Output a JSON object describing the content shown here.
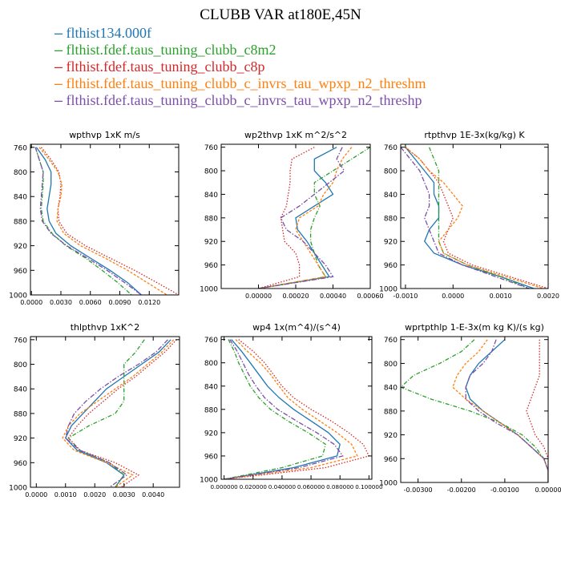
{
  "title": "CLUBB VAR at180E,45N",
  "series": [
    {
      "name": "flthist134.000f",
      "color": "#1f77b4",
      "dash": ""
    },
    {
      "name": "flthist.fdef.taus_tuning_clubb_c8m2",
      "color": "#2ca02c",
      "dash": "5,2,1,2"
    },
    {
      "name": "flthist.fdef.taus_tuning_clubb_c8p",
      "color": "#d62728",
      "dash": "1.5,2"
    },
    {
      "name": "flthist.fdef.taus_tuning_clubb_c_invrs_tau_wpxp_n2_threshm",
      "color": "#ff7f0e",
      "dash": "3,2"
    },
    {
      "name": "flthist.fdef.taus_tuning_clubb_c_invrs_tau_wpxp_n2_threshp",
      "color": "#7b4fa8",
      "dash": "6,2,1.5,2"
    }
  ],
  "chart_data": [
    {
      "type": "line",
      "title": "wpthvp  1xK m/s",
      "y": [
        760,
        780,
        800,
        820,
        840,
        860,
        880,
        900,
        920,
        940,
        960,
        980,
        1000
      ],
      "ylim": [
        1000,
        755
      ],
      "yticks": [
        760,
        800,
        840,
        880,
        920,
        960,
        1000
      ],
      "xlim": [
        -0.0001,
        0.015
      ],
      "xticks": [
        0.0,
        0.003,
        0.006,
        0.009,
        0.012
      ],
      "xticklabels": [
        "0.0000",
        "0.0030",
        "0.0060",
        "0.0090",
        "0.0120"
      ],
      "series": [
        {
          "values": [
            0.0005,
            0.0014,
            0.002,
            0.002,
            0.0018,
            0.0016,
            0.0018,
            0.0025,
            0.004,
            0.006,
            0.008,
            0.0098,
            0.0112
          ]
        },
        {
          "values": [
            0.0004,
            0.0008,
            0.0012,
            0.0012,
            0.0011,
            0.001,
            0.0012,
            0.0021,
            0.0035,
            0.0055,
            0.0072,
            0.0088,
            0.0102
          ]
        },
        {
          "values": [
            0.001,
            0.002,
            0.0028,
            0.003,
            0.0029,
            0.0027,
            0.0028,
            0.0036,
            0.0055,
            0.008,
            0.0105,
            0.0128,
            0.015
          ]
        },
        {
          "values": [
            0.0008,
            0.0018,
            0.0027,
            0.0031,
            0.003,
            0.0027,
            0.0026,
            0.0033,
            0.005,
            0.0075,
            0.0098,
            0.0118,
            0.0138
          ]
        },
        {
          "values": [
            0.0004,
            0.0008,
            0.0012,
            0.0011,
            0.001,
            0.0009,
            0.0011,
            0.002,
            0.0036,
            0.0057,
            0.0077,
            0.0095,
            0.0112
          ]
        }
      ]
    },
    {
      "type": "line",
      "title": "wp2thvp  1xK m^2/s^2",
      "y": [
        760,
        780,
        800,
        820,
        840,
        860,
        880,
        900,
        920,
        940,
        960,
        980,
        1000
      ],
      "ylim": [
        1000,
        755
      ],
      "yticks": [
        760,
        800,
        840,
        880,
        920,
        960,
        1000
      ],
      "xlim": [
        -0.0002,
        0.0006
      ],
      "xticks": [
        0.0,
        0.0002,
        0.0004,
        0.0006
      ],
      "xticklabels": [
        "0.00000",
        "0.00020",
        "0.00040",
        "0.00060"
      ],
      "series": [
        {
          "values": [
            0.00042,
            0.0003,
            0.0003,
            0.00036,
            0.0004,
            0.0003,
            0.0002,
            0.00021,
            0.00026,
            0.0003,
            0.00034,
            0.00038,
            0.0
          ]
        },
        {
          "values": [
            0.0006,
            0.0005,
            0.0004,
            0.0003,
            0.0003,
            0.00033,
            0.0003,
            0.00028,
            0.00028,
            0.0003,
            0.00032,
            0.00036,
            0.0
          ]
        },
        {
          "values": [
            0.0003,
            0.00018,
            0.00017,
            0.00017,
            0.00016,
            0.00015,
            0.00012,
            0.00013,
            0.00014,
            0.0002,
            0.00022,
            0.00022,
            0.0
          ]
        },
        {
          "values": [
            0.0005,
            0.00045,
            0.00042,
            0.0004,
            0.00035,
            0.00032,
            0.00022,
            0.0002,
            0.00024,
            0.00028,
            0.00032,
            0.00036,
            0.0
          ]
        },
        {
          "values": [
            0.00045,
            0.00042,
            0.00046,
            0.00038,
            0.0003,
            0.00022,
            0.00012,
            0.00015,
            0.00024,
            0.0003,
            0.00036,
            0.0004,
            0.0
          ]
        }
      ]
    },
    {
      "type": "line",
      "title": "rtpthvp  1E-3x(kg/kg) K",
      "y": [
        760,
        780,
        800,
        820,
        840,
        860,
        880,
        900,
        920,
        940,
        960,
        980,
        1000
      ],
      "ylim": [
        1000,
        755
      ],
      "yticks": [
        760,
        800,
        840,
        880,
        920,
        960,
        1000
      ],
      "xlim": [
        -0.0011,
        0.002
      ],
      "xticks": [
        -0.001,
        0.0,
        0.001,
        0.002
      ],
      "xticklabels": [
        "-0.0010",
        "0.0000",
        "0.0010",
        "0.0020"
      ],
      "series": [
        {
          "values": [
            -0.001,
            -0.0008,
            -0.0006,
            -0.0004,
            -0.0004,
            -0.0003,
            -0.0003,
            -0.0005,
            -0.0006,
            -0.0004,
            0.0002,
            0.001,
            0.0017
          ]
        },
        {
          "values": [
            -0.0005,
            -0.0004,
            -0.0003,
            -0.0003,
            -0.0003,
            -0.0003,
            -0.0003,
            -0.0003,
            -0.0003,
            -0.0002,
            0.0003,
            0.001,
            0.0016
          ]
        },
        {
          "values": [
            -0.001,
            -0.0007,
            -0.0005,
            -0.0003,
            -0.0002,
            -0.0001,
            0.0,
            -0.0001,
            -0.0002,
            -0.0001,
            0.0004,
            0.0012,
            0.002
          ]
        },
        {
          "values": [
            -0.001,
            -0.0007,
            -0.0005,
            -0.0002,
            0.0,
            0.0002,
            0.0001,
            -0.0001,
            -0.0003,
            -0.0002,
            0.0003,
            0.0011,
            0.0019
          ]
        },
        {
          "values": [
            -0.0011,
            -0.0009,
            -0.0007,
            -0.0006,
            -0.0005,
            -0.0005,
            -0.0006,
            -0.0005,
            -0.0004,
            -0.0003,
            0.0002,
            0.0009,
            0.0016
          ]
        }
      ]
    },
    {
      "type": "line",
      "title": "thlpthvp  1xK^2",
      "y": [
        760,
        780,
        800,
        820,
        840,
        860,
        880,
        900,
        920,
        940,
        960,
        980,
        1000
      ],
      "ylim": [
        1000,
        755
      ],
      "yticks": [
        760,
        800,
        840,
        880,
        920,
        960,
        1000
      ],
      "xlim": [
        -0.0002,
        0.0049
      ],
      "xticks": [
        0.0,
        0.001,
        0.002,
        0.003,
        0.004
      ],
      "xticklabels": [
        "0.0000",
        "0.0010",
        "0.0020",
        "0.0030",
        "0.0040"
      ],
      "series": [
        {
          "values": [
            0.0046,
            0.0042,
            0.0036,
            0.003,
            0.0024,
            0.002,
            0.0016,
            0.0012,
            0.001,
            0.0014,
            0.0024,
            0.003,
            0.0027
          ]
        },
        {
          "values": [
            0.0037,
            0.0034,
            0.003,
            0.003,
            0.003,
            0.003,
            0.0027,
            0.0018,
            0.0011,
            0.0015,
            0.0025,
            0.003,
            0.0027
          ]
        },
        {
          "values": [
            0.0048,
            0.0044,
            0.0039,
            0.0034,
            0.0028,
            0.0023,
            0.0018,
            0.0014,
            0.0011,
            0.0015,
            0.0027,
            0.0035,
            0.0029
          ]
        },
        {
          "values": [
            0.0047,
            0.0043,
            0.0038,
            0.0033,
            0.0027,
            0.0021,
            0.0015,
            0.0011,
            0.0009,
            0.0013,
            0.0024,
            0.0033,
            0.0027
          ]
        },
        {
          "values": [
            0.0045,
            0.0041,
            0.0035,
            0.0028,
            0.0022,
            0.0017,
            0.0013,
            0.0011,
            0.001,
            0.0015,
            0.0025,
            0.0031,
            0.0025
          ]
        }
      ]
    },
    {
      "type": "line",
      "title": "wp4  1x(m^4)/(s^4)",
      "y": [
        760,
        780,
        800,
        820,
        840,
        860,
        880,
        900,
        920,
        940,
        960,
        980,
        1000
      ],
      "ylim": [
        1000,
        755
      ],
      "yticks": [
        760,
        800,
        840,
        880,
        920,
        960,
        1000
      ],
      "xlim": [
        -2.0,
        102.0
      ],
      "xticks": [
        0,
        20,
        40,
        60,
        80,
        100
      ],
      "xticklabels": [
        "0.000000",
        "0.020000",
        "0.040000",
        "0.060000",
        "0.080000",
        "0.100000"
      ],
      "series": [
        {
          "values": [
            5,
            12,
            18,
            24,
            30,
            38,
            48,
            60,
            72,
            80,
            78,
            48,
            0
          ]
        },
        {
          "values": [
            3,
            7,
            10,
            14,
            18,
            24,
            32,
            44,
            58,
            70,
            68,
            40,
            0
          ]
        },
        {
          "values": [
            10,
            20,
            28,
            34,
            40,
            48,
            60,
            74,
            86,
            96,
            100,
            70,
            0
          ]
        },
        {
          "values": [
            8,
            16,
            25,
            32,
            38,
            44,
            54,
            66,
            78,
            88,
            92,
            60,
            0
          ]
        },
        {
          "values": [
            4,
            9,
            13,
            17,
            22,
            28,
            37,
            50,
            64,
            76,
            82,
            52,
            0
          ]
        }
      ]
    },
    {
      "type": "line",
      "title": "wprtpthlp  1-E-3x(m kg K)/(s kg)",
      "y": [
        760,
        780,
        800,
        820,
        840,
        860,
        880,
        900,
        920,
        940,
        960,
        980,
        1000
      ],
      "ylim": [
        1000,
        755
      ],
      "yticks": [
        760,
        800,
        840,
        880,
        920,
        960,
        1000
      ],
      "xlim": [
        -0.0034,
        0.0
      ],
      "xticks": [
        -0.003,
        -0.002,
        -0.001,
        0.0
      ],
      "xticklabels": [
        "-0.00300",
        "-0.00200",
        "-0.00100",
        "0.00000"
      ],
      "series": [
        {
          "values": [
            -0.001,
            -0.0013,
            -0.0016,
            -0.0018,
            -0.0019,
            -0.0018,
            -0.0015,
            -0.0011,
            -0.0007,
            -0.0004,
            -0.0001,
            0.0,
            0.0
          ]
        },
        {
          "values": [
            -0.0017,
            -0.002,
            -0.0025,
            -0.0031,
            -0.0034,
            -0.0027,
            -0.0018,
            -0.0011,
            -0.0006,
            -0.0003,
            -0.0001,
            0.0,
            0.0
          ]
        },
        {
          "values": [
            -0.0002,
            -0.0002,
            -0.0002,
            -0.0002,
            -0.0003,
            -0.0004,
            -0.0005,
            -0.0004,
            -0.0003,
            -0.0001,
            0.0,
            0.0,
            0.0
          ]
        },
        {
          "values": [
            -0.0014,
            -0.0016,
            -0.0019,
            -0.0021,
            -0.0022,
            -0.0019,
            -0.0015,
            -0.0011,
            -0.0007,
            -0.0004,
            -0.0001,
            0.0,
            0.0
          ]
        },
        {
          "values": [
            -0.0012,
            -0.0013,
            -0.0015,
            -0.0018,
            -0.0019,
            -0.0019,
            -0.0016,
            -0.0012,
            -0.0007,
            -0.0004,
            -0.0001,
            0.0,
            0.0
          ]
        }
      ]
    }
  ]
}
